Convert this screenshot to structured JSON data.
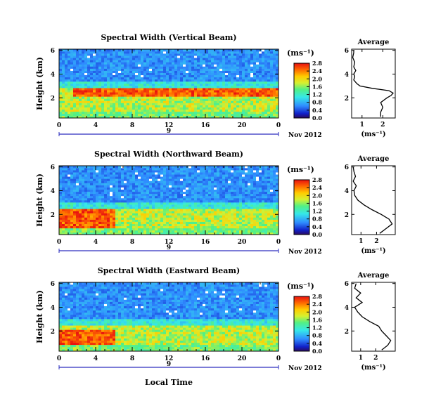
{
  "figure": {
    "x_axis_title": "Local Time",
    "panel_y_label": "Height (km)",
    "colorbar_unit": "(ms⁻¹)",
    "avg_title": "Average",
    "avg_xlabel": "(ms⁻¹)"
  },
  "chart_data": [
    {
      "type": "heatmap",
      "title": "Spectral Width (Vertical Beam)",
      "ylabel": "Height (km)",
      "x_ticks": [
        "0",
        "4",
        "8",
        "12",
        "16",
        "20",
        "0"
      ],
      "y_ticks": [
        "2",
        "4",
        "6"
      ],
      "date_label": "Nov 2012",
      "date_day": "9",
      "colorbar_ticks": [
        "0.0",
        "0.4",
        "0.8",
        "1.2",
        "1.6",
        "2.0",
        "2.4",
        "2.8"
      ],
      "xlim_hours": [
        0,
        24
      ],
      "ylim_km": [
        0.3,
        6.1
      ],
      "features": {
        "red_layer_km": [
          2.1,
          2.8
        ],
        "red_layer_hours": [
          1.5,
          24
        ],
        "blue_above_km": 3.4
      },
      "average_profile": {
        "title": "Average",
        "xlabel": "(ms⁻¹)",
        "x_ticks": [
          "1",
          "2"
        ],
        "xlim": [
          0.5,
          2.6
        ],
        "y_ticks": [
          "2",
          "4",
          "6"
        ],
        "ylim_km": [
          0.3,
          6.1
        ],
        "height_km": [
          0.4,
          0.8,
          1.2,
          1.6,
          2.0,
          2.2,
          2.4,
          2.6,
          2.8,
          3.0,
          3.2,
          3.5,
          3.8,
          4.0,
          4.3,
          4.6,
          5.0,
          5.4,
          5.8,
          6.0
        ],
        "width_ms": [
          1.9,
          1.9,
          2.0,
          1.9,
          2.2,
          2.4,
          2.5,
          2.3,
          1.5,
          0.9,
          0.75,
          0.6,
          0.65,
          0.6,
          0.7,
          0.6,
          0.65,
          0.55,
          0.6,
          0.6
        ]
      }
    },
    {
      "type": "heatmap",
      "title": "Spectral Width (Northward Beam)",
      "ylabel": "Height (km)",
      "x_ticks": [
        "0",
        "4",
        "8",
        "12",
        "16",
        "20",
        "0"
      ],
      "y_ticks": [
        "2",
        "4",
        "6"
      ],
      "date_label": "Nov 2012",
      "date_day": "9",
      "colorbar_ticks": [
        "0.0",
        "0.4",
        "0.8",
        "1.2",
        "1.6",
        "2.0",
        "2.4",
        "2.8"
      ],
      "xlim_hours": [
        0,
        24
      ],
      "ylim_km": [
        0.3,
        6.1
      ],
      "features": {
        "red_layer_km": [
          0.4,
          2.5
        ],
        "red_layer_hours": [
          0,
          6
        ],
        "blue_above_km": 3.0
      },
      "average_profile": {
        "title": "Average",
        "xlabel": "(ms⁻¹)",
        "x_ticks": [
          "1",
          "2"
        ],
        "xlim": [
          0.4,
          3.2
        ],
        "y_ticks": [
          "2",
          "4",
          "6"
        ],
        "ylim_km": [
          0.3,
          6.1
        ],
        "height_km": [
          0.4,
          0.8,
          1.2,
          1.6,
          2.0,
          2.4,
          2.8,
          3.2,
          3.6,
          4.0,
          4.4,
          4.8,
          5.2,
          5.6,
          6.0
        ],
        "width_ms": [
          2.2,
          2.6,
          3.0,
          2.8,
          2.3,
          1.7,
          1.2,
          0.8,
          0.6,
          0.55,
          0.7,
          0.5,
          0.65,
          0.55,
          0.5
        ]
      }
    },
    {
      "type": "heatmap",
      "title": "Spectral Width (Eastward Beam)",
      "ylabel": "Height (km)",
      "x_ticks": [
        "0",
        "4",
        "8",
        "12",
        "16",
        "20",
        "0"
      ],
      "y_ticks": [
        "2",
        "4",
        "6"
      ],
      "date_label": "Nov 2012",
      "date_day": "9",
      "colorbar_ticks": [
        "0.0",
        "0.4",
        "0.8",
        "1.2",
        "1.6",
        "2.0",
        "2.4",
        "2.8"
      ],
      "xlim_hours": [
        0,
        24
      ],
      "ylim_km": [
        0.3,
        6.1
      ],
      "features": {
        "red_layer_km": [
          0.5,
          2.2
        ],
        "red_layer_hours": [
          0,
          6
        ],
        "blue_above_km": 3.0
      },
      "average_profile": {
        "title": "Average",
        "xlabel": "(ms⁻¹)",
        "x_ticks": [
          "1",
          "2"
        ],
        "xlim": [
          0.4,
          3.3
        ],
        "y_ticks": [
          "2",
          "4",
          "6"
        ],
        "ylim_km": [
          0.3,
          6.1
        ],
        "height_km": [
          0.4,
          0.8,
          1.2,
          1.6,
          2.0,
          2.4,
          2.8,
          3.2,
          3.6,
          4.0,
          4.4,
          4.8,
          5.2,
          5.6,
          6.0
        ],
        "width_ms": [
          2.4,
          2.8,
          3.0,
          2.7,
          2.4,
          2.2,
          1.6,
          1.1,
          0.8,
          0.6,
          1.1,
          0.7,
          1.0,
          0.6,
          0.7
        ]
      }
    }
  ]
}
